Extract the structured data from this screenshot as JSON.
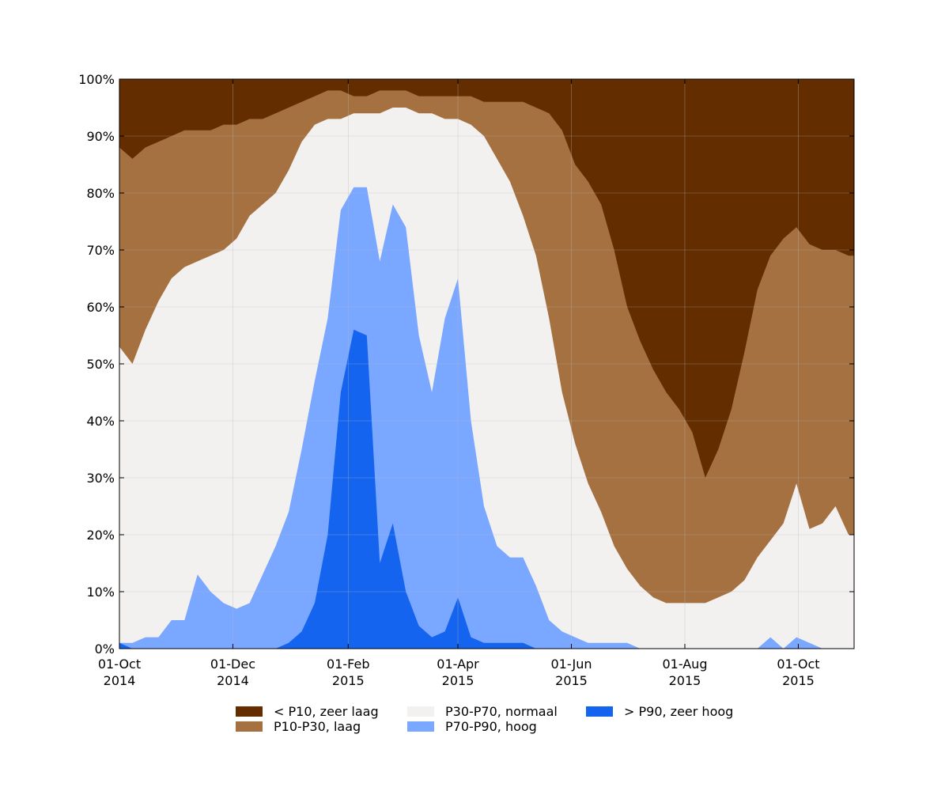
{
  "chart_data": {
    "type": "area",
    "stacked": true,
    "title": "",
    "xlabel": "",
    "ylabel": "",
    "grid": true,
    "legend_position": "bottom",
    "x_range": [
      "2014-10-01",
      "2015-10-31"
    ],
    "ylim": [
      0,
      100
    ],
    "y_ticks": [
      "0%",
      "10%",
      "20%",
      "30%",
      "40%",
      "50%",
      "60%",
      "70%",
      "80%",
      "90%",
      "100%"
    ],
    "x_ticks": [
      {
        "date": "2014-10-01",
        "label": "01-Oct",
        "year": "2014"
      },
      {
        "date": "2014-12-01",
        "label": "01-Dec",
        "year": "2014"
      },
      {
        "date": "2015-02-01",
        "label": "01-Feb",
        "year": "2015"
      },
      {
        "date": "2015-04-01",
        "label": "01-Apr",
        "year": "2015"
      },
      {
        "date": "2015-06-01",
        "label": "01-Jun",
        "year": "2015"
      },
      {
        "date": "2015-08-01",
        "label": "01-Aug",
        "year": "2015"
      },
      {
        "date": "2015-10-01",
        "label": "01-Oct",
        "year": "2015"
      }
    ],
    "boundary_note": "values are cumulative percentages from the bottom (upper edge of each band)",
    "dates": [
      "2014-10-01",
      "2014-10-08",
      "2014-10-15",
      "2014-10-22",
      "2014-10-29",
      "2014-11-05",
      "2014-11-12",
      "2014-11-19",
      "2014-11-26",
      "2014-12-03",
      "2014-12-10",
      "2014-12-17",
      "2014-12-24",
      "2014-12-31",
      "2015-01-07",
      "2015-01-14",
      "2015-01-21",
      "2015-01-28",
      "2015-02-04",
      "2015-02-11",
      "2015-02-18",
      "2015-02-25",
      "2015-03-04",
      "2015-03-11",
      "2015-03-18",
      "2015-03-25",
      "2015-04-01",
      "2015-04-08",
      "2015-04-15",
      "2015-04-22",
      "2015-04-29",
      "2015-05-06",
      "2015-05-13",
      "2015-05-20",
      "2015-05-27",
      "2015-06-03",
      "2015-06-10",
      "2015-06-17",
      "2015-06-24",
      "2015-07-01",
      "2015-07-08",
      "2015-07-15",
      "2015-07-22",
      "2015-07-29",
      "2015-08-05",
      "2015-08-12",
      "2015-08-19",
      "2015-08-26",
      "2015-09-02",
      "2015-09-09",
      "2015-09-16",
      "2015-09-23",
      "2015-09-30",
      "2015-10-07",
      "2015-10-14",
      "2015-10-21",
      "2015-10-28"
    ],
    "series": [
      {
        "name": "> P90, zeer hoog",
        "color": "#1464f0",
        "values": [
          1,
          0,
          0,
          0,
          0,
          0,
          0,
          0,
          0,
          0,
          0,
          0,
          0,
          1,
          3,
          8,
          20,
          45,
          56,
          55,
          15,
          22,
          10,
          4,
          2,
          3,
          9,
          2,
          1,
          1,
          1,
          1,
          0,
          0,
          0,
          0,
          0,
          0,
          0,
          0,
          0,
          0,
          0,
          0,
          0,
          0,
          0,
          0,
          0,
          0,
          0,
          0,
          0,
          0,
          0,
          0,
          0
        ]
      },
      {
        "name": "P70-P90, hoog",
        "color": "#7aa7ff",
        "values": [
          1,
          1,
          2,
          2,
          5,
          5,
          13,
          10,
          8,
          7,
          8,
          13,
          18,
          24,
          35,
          47,
          58,
          77,
          81,
          81,
          68,
          78,
          74,
          55,
          45,
          58,
          65,
          40,
          25,
          18,
          16,
          16,
          11,
          5,
          3,
          2,
          1,
          1,
          1,
          1,
          0,
          0,
          0,
          0,
          0,
          0,
          0,
          0,
          0,
          0,
          2,
          0,
          2,
          1,
          0,
          0,
          0
        ]
      },
      {
        "name": "P30-P70, normaal",
        "color": "#f2f1f0",
        "values": [
          53,
          50,
          56,
          61,
          65,
          67,
          68,
          69,
          70,
          72,
          76,
          78,
          80,
          84,
          89,
          92,
          93,
          93,
          94,
          94,
          94,
          95,
          95,
          94,
          94,
          93,
          93,
          92,
          90,
          86,
          82,
          76,
          69,
          58,
          45,
          36,
          29,
          24,
          18,
          14,
          11,
          9,
          8,
          8,
          8,
          8,
          9,
          10,
          12,
          16,
          19,
          22,
          29,
          21,
          22,
          25,
          20
        ]
      },
      {
        "name": "P10-P30, laag",
        "color": "#a57140",
        "values": [
          88,
          86,
          88,
          89,
          90,
          91,
          91,
          91,
          92,
          92,
          93,
          93,
          94,
          95,
          96,
          97,
          98,
          98,
          97,
          97,
          98,
          98,
          98,
          97,
          97,
          97,
          97,
          97,
          96,
          96,
          96,
          96,
          95,
          94,
          91,
          85,
          82,
          78,
          70,
          60,
          54,
          49,
          45,
          42,
          38,
          30,
          35,
          42,
          52,
          63,
          69,
          72,
          74,
          71,
          70,
          70,
          69
        ]
      },
      {
        "name": "< P10, zeer laag",
        "color": "#632d00",
        "values": [
          100,
          100,
          100,
          100,
          100,
          100,
          100,
          100,
          100,
          100,
          100,
          100,
          100,
          100,
          100,
          100,
          100,
          100,
          100,
          100,
          100,
          100,
          100,
          100,
          100,
          100,
          100,
          100,
          100,
          100,
          100,
          100,
          100,
          100,
          100,
          100,
          100,
          100,
          100,
          100,
          100,
          100,
          100,
          100,
          100,
          100,
          100,
          100,
          100,
          100,
          100,
          100,
          100,
          100,
          100,
          100,
          100
        ]
      }
    ]
  }
}
